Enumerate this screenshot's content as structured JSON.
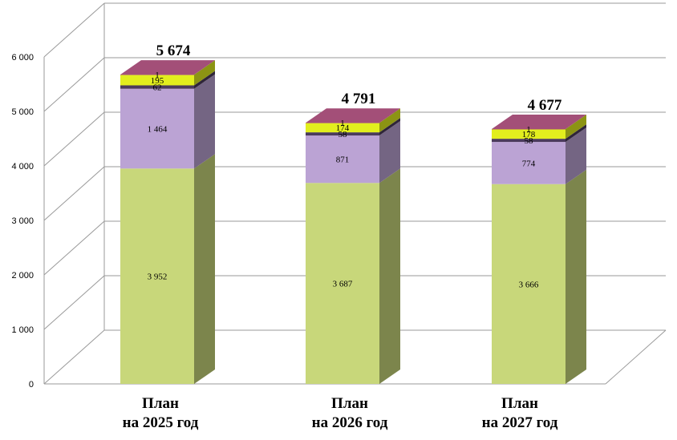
{
  "chart_data": {
    "type": "bar",
    "stacked": true,
    "categories": [
      [
        "План",
        "на 2025 год"
      ],
      [
        "План",
        "на 2026 год"
      ],
      [
        "План",
        "на 2027 год"
      ]
    ],
    "series": [
      {
        "values": [
          3952,
          3687,
          3666
        ],
        "value_labels": [
          "3 952",
          "3 687",
          "3 666"
        ],
        "color": "#c8d77a"
      },
      {
        "values": [
          1464,
          871,
          774
        ],
        "value_labels": [
          "1 464",
          "871",
          "774"
        ],
        "color": "#bba3d4"
      },
      {
        "values": [
          62,
          58,
          58
        ],
        "value_labels": [
          "62",
          "58",
          "58"
        ],
        "color": "#4b3b5c"
      },
      {
        "values": [
          195,
          174,
          178
        ],
        "value_labels": [
          "195",
          "174",
          "178"
        ],
        "color": "#e2ee1e"
      },
      {
        "values": [
          1,
          1,
          1
        ],
        "value_labels": [
          "1",
          "1",
          "1"
        ],
        "color": "#a34f78"
      }
    ],
    "totals": [
      "5 674",
      "4 791",
      "4 677"
    ],
    "ylim": [
      0,
      6000
    ],
    "yticks": [
      "0",
      "1 000",
      "2 000",
      "3 000",
      "4 000",
      "5 000",
      "6 000"
    ],
    "grid": true,
    "legend": "none"
  }
}
